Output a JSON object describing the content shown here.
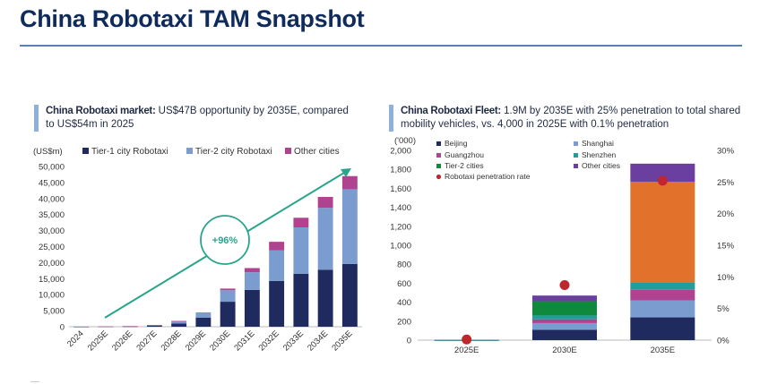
{
  "page": {
    "title": "China Robotaxi TAM Snapshot"
  },
  "left_subtitle": {
    "bold": "China Robotaxi market:",
    "text": " US$47B opportunity by 2035E, compared to US$54m in 2025"
  },
  "right_subtitle": {
    "bold": "China Robotaxi Fleet:",
    "text": " 1.9M by 2035E with 25% penetration to total shared mobility vehicles, vs. 4,000 in 2025E with 0.1% penetration"
  },
  "colors": {
    "tier1": "#1f2b5e",
    "tier2": "#7b9cce",
    "other": "#b0438f",
    "beijing": "#1f2b5e",
    "shanghai": "#7b9cce",
    "guangzhou": "#b0438f",
    "shenzhen": "#1f9e9a",
    "tier2_cities": "#0f8a3c",
    "other_cities": "#6b3fa0",
    "penetration": "#c0272d",
    "growth": "#2aa58c",
    "orange": "#e2722b"
  },
  "chart_data": [
    {
      "type": "bar",
      "stacked": true,
      "unit_label": "(US$m)",
      "categories": [
        "2024",
        "2025E",
        "2026E",
        "2027E",
        "2028E",
        "2029E",
        "2030E",
        "2031E",
        "2032E",
        "2033E",
        "2034E",
        "2035E"
      ],
      "series": [
        {
          "name": "Tier-1 city Robotaxi",
          "values": [
            10,
            40,
            100,
            300,
            1000,
            2800,
            7800,
            11500,
            14300,
            16500,
            17800,
            19600
          ]
        },
        {
          "name": "Tier-2 city Robotaxi",
          "values": [
            0,
            10,
            60,
            200,
            700,
            1400,
            3600,
            5500,
            9500,
            14500,
            19300,
            23300
          ]
        },
        {
          "name": "Other cities",
          "values": [
            0,
            4,
            20,
            50,
            100,
            200,
            500,
            1300,
            2700,
            3000,
            3400,
            4100
          ]
        }
      ],
      "ylim": [
        0,
        50000
      ],
      "yticks": [
        "0",
        "5,000",
        "10,000",
        "15,000",
        "20,000",
        "25,000",
        "30,000",
        "35,000",
        "40,000",
        "45,000",
        "50,000"
      ],
      "annotation": "+96%"
    },
    {
      "type": "bar",
      "stacked": true,
      "unit_label": "('000)",
      "categories": [
        "2025E",
        "2030E",
        "2035E"
      ],
      "series": [
        {
          "name": "Beijing",
          "values": [
            2,
            110,
            240
          ]
        },
        {
          "name": "Shanghai",
          "values": [
            1,
            70,
            180
          ]
        },
        {
          "name": "Guangzhou",
          "values": [
            1,
            40,
            110
          ]
        },
        {
          "name": "Shenzhen",
          "values": [
            1,
            40,
            80
          ]
        },
        {
          "name": "Tier-2 cities",
          "values": [
            0,
            150,
            0
          ]
        },
        {
          "name": "Other cities",
          "values": [
            0,
            60,
            0
          ]
        },
        {
          "name": "",
          "values": [
            0,
            0,
            1060
          ]
        },
        {
          "name": "",
          "values": [
            0,
            0,
            190
          ]
        }
      ],
      "penetration": {
        "name": "Robotaxi penetration rate",
        "values": [
          0.1,
          8.7,
          25.2
        ]
      },
      "ylim": [
        0,
        2000
      ],
      "yticks": [
        "0",
        "200",
        "400",
        "600",
        "800",
        "1,000",
        "1,200",
        "1,400",
        "1,600",
        "1,800",
        "2,000"
      ],
      "y2lim": [
        0,
        30
      ],
      "y2ticks": [
        "0%",
        "5%",
        "10%",
        "15%",
        "20%",
        "25%",
        "30%"
      ]
    }
  ]
}
